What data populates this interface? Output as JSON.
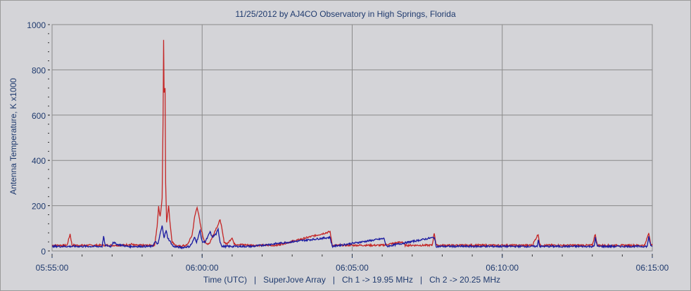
{
  "chart_data": {
    "type": "line",
    "title": "11/25/2012  by  AJ4CO Observatory  in  High Springs, Florida",
    "xlabel": "Time (UTC)   |   SuperJove Array   |   Ch 1 -> 19.95 MHz   |   Ch 2 -> 20.25 MHz",
    "ylabel": "Antenna Temperature, K x1000",
    "x_units": "seconds after 05:55:00",
    "xlim": [
      0,
      1200
    ],
    "ylim": [
      0,
      1000
    ],
    "grid": true,
    "y_ticks": [
      0,
      200,
      400,
      600,
      800,
      1000
    ],
    "y_tick_labels": [
      "0",
      "200",
      "400",
      "600",
      "800",
      "1000"
    ],
    "x_ticks": [
      0,
      300,
      600,
      900,
      1200
    ],
    "x_tick_labels": [
      "05:55:00",
      "06:00:00",
      "06:05:00",
      "06:10:00",
      "06:15:00"
    ],
    "series": [
      {
        "name": "Ch 1 -> 19.95 MHz",
        "color": "#c42626",
        "points": [
          [
            0,
            25
          ],
          [
            30,
            25
          ],
          [
            36,
            75
          ],
          [
            40,
            25
          ],
          [
            140,
            25
          ],
          [
            160,
            30
          ],
          [
            165,
            25
          ],
          [
            205,
            25
          ],
          [
            210,
            110
          ],
          [
            213,
            195
          ],
          [
            216,
            150
          ],
          [
            220,
            230
          ],
          [
            222,
            600
          ],
          [
            223,
            935
          ],
          [
            224,
            700
          ],
          [
            226,
            720
          ],
          [
            227,
            300
          ],
          [
            229,
            130
          ],
          [
            231,
            160
          ],
          [
            233,
            200
          ],
          [
            236,
            120
          ],
          [
            240,
            40
          ],
          [
            250,
            20
          ],
          [
            270,
            25
          ],
          [
            280,
            70
          ],
          [
            285,
            150
          ],
          [
            290,
            195
          ],
          [
            293,
            160
          ],
          [
            297,
            110
          ],
          [
            302,
            60
          ],
          [
            308,
            30
          ],
          [
            315,
            35
          ],
          [
            322,
            70
          ],
          [
            328,
            100
          ],
          [
            333,
            120
          ],
          [
            336,
            140
          ],
          [
            340,
            90
          ],
          [
            344,
            40
          ],
          [
            350,
            30
          ],
          [
            360,
            60
          ],
          [
            364,
            30
          ],
          [
            400,
            25
          ],
          [
            450,
            25
          ],
          [
            556,
            85
          ],
          [
            560,
            25
          ],
          [
            660,
            25
          ],
          [
            700,
            40
          ],
          [
            706,
            25
          ],
          [
            760,
            25
          ],
          [
            764,
            80
          ],
          [
            768,
            25
          ],
          [
            960,
            25
          ],
          [
            972,
            75
          ],
          [
            975,
            25
          ],
          [
            1080,
            25
          ],
          [
            1086,
            75
          ],
          [
            1090,
            25
          ],
          [
            1185,
            25
          ],
          [
            1193,
            80
          ],
          [
            1197,
            30
          ],
          [
            1200,
            25
          ]
        ]
      },
      {
        "name": "Ch 2 -> 20.25 MHz",
        "color": "#1a1aa0",
        "points": [
          [
            0,
            20
          ],
          [
            90,
            20
          ],
          [
            100,
            20
          ],
          [
            103,
            65
          ],
          [
            106,
            25
          ],
          [
            118,
            20
          ],
          [
            122,
            40
          ],
          [
            128,
            30
          ],
          [
            140,
            25
          ],
          [
            150,
            20
          ],
          [
            200,
            20
          ],
          [
            206,
            40
          ],
          [
            212,
            30
          ],
          [
            216,
            75
          ],
          [
            220,
            110
          ],
          [
            224,
            60
          ],
          [
            228,
            90
          ],
          [
            231,
            60
          ],
          [
            235,
            45
          ],
          [
            238,
            35
          ],
          [
            242,
            20
          ],
          [
            260,
            15
          ],
          [
            275,
            20
          ],
          [
            280,
            35
          ],
          [
            285,
            60
          ],
          [
            289,
            40
          ],
          [
            296,
            90
          ],
          [
            300,
            40
          ],
          [
            306,
            40
          ],
          [
            311,
            60
          ],
          [
            316,
            85
          ],
          [
            320,
            60
          ],
          [
            328,
            75
          ],
          [
            332,
            95
          ],
          [
            336,
            40
          ],
          [
            340,
            20
          ],
          [
            400,
            20
          ],
          [
            556,
            60
          ],
          [
            560,
            20
          ],
          [
            664,
            55
          ],
          [
            668,
            20
          ],
          [
            764,
            60
          ],
          [
            768,
            20
          ],
          [
            970,
            20
          ],
          [
            972,
            50
          ],
          [
            975,
            20
          ],
          [
            1084,
            20
          ],
          [
            1086,
            60
          ],
          [
            1090,
            20
          ],
          [
            1190,
            20
          ],
          [
            1193,
            65
          ],
          [
            1197,
            20
          ],
          [
            1200,
            20
          ]
        ]
      }
    ]
  }
}
